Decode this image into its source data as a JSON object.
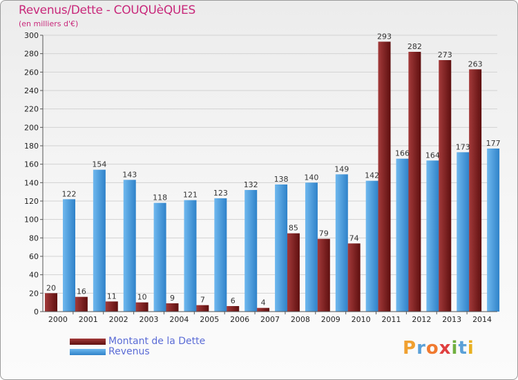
{
  "colors": {
    "title": "#c8287a",
    "dette": "#7a1a1a",
    "revenus": "#3d8fd6",
    "legend_text": "#5b6cd6"
  },
  "chart_data": {
    "type": "bar",
    "title": "Revenus/Dette - COUQUèQUES",
    "subtitle": "(en milliers d'€)",
    "xlabel": "",
    "ylabel": "",
    "ylim": [
      0,
      300
    ],
    "yticks": [
      0,
      20,
      40,
      60,
      80,
      100,
      120,
      140,
      160,
      180,
      200,
      220,
      240,
      260,
      280,
      300
    ],
    "grid": true,
    "legend_position": "bottom-left",
    "categories": [
      "2000",
      "2001",
      "2002",
      "2003",
      "2004",
      "2005",
      "2006",
      "2007",
      "2008",
      "2009",
      "2010",
      "2011",
      "2012",
      "2013",
      "2014"
    ],
    "series": [
      {
        "name": "Montant de la Dette",
        "values": [
          20,
          16,
          11,
          10,
          9,
          7,
          6,
          4,
          85,
          79,
          74,
          293,
          282,
          273,
          263
        ]
      },
      {
        "name": "Revenus",
        "values": [
          122,
          154,
          143,
          118,
          121,
          123,
          132,
          138,
          140,
          149,
          142,
          166,
          164,
          173,
          177
        ]
      }
    ]
  },
  "logo": {
    "letters": [
      "P",
      "r",
      "o",
      "x",
      "i",
      "t",
      "i"
    ],
    "colors": [
      "#f0a030",
      "#5aa0d8",
      "#f07a30",
      "#e04040",
      "#70b040",
      "#5aa0d8",
      "#e8b020"
    ]
  }
}
